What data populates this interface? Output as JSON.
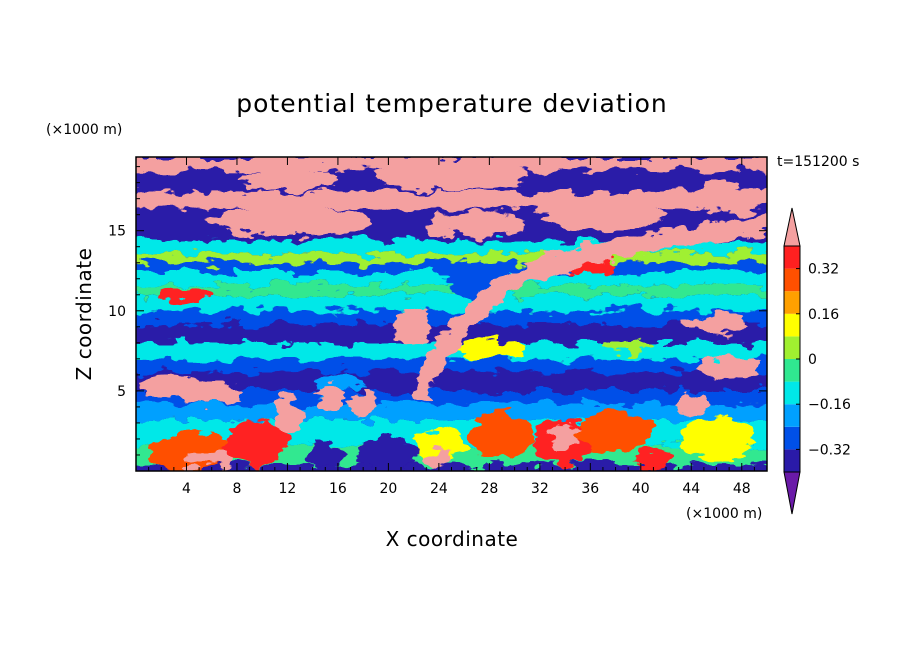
{
  "chart_data": {
    "type": "heatmap",
    "title": "potential temperature deviation",
    "xlabel": "X coordinate",
    "ylabel": "Z coordinate",
    "x_unit": "(×1000 m)",
    "y_unit": "(×1000 m)",
    "time_label": "t=151200 s",
    "xlim": [
      0,
      50
    ],
    "ylim": [
      0,
      19.6
    ],
    "x_ticks": [
      4,
      8,
      12,
      16,
      20,
      24,
      28,
      32,
      36,
      40,
      44,
      48
    ],
    "y_ticks": [
      5,
      10,
      15
    ],
    "colorbar": {
      "levels": [
        -0.4,
        -0.32,
        -0.24,
        -0.16,
        -0.08,
        0,
        0.08,
        0.16,
        0.24,
        0.32,
        0.4
      ],
      "tick_labels": [
        "0.32",
        "0.16",
        "0",
        "−0.16",
        "−0.32"
      ],
      "tick_values": [
        0.32,
        0.16,
        0,
        -0.16,
        -0.32
      ],
      "colors": [
        "#6a1aa8",
        "#2a1aa8",
        "#0050e8",
        "#00a0ff",
        "#00e8e8",
        "#30e890",
        "#a0f030",
        "#ffff00",
        "#ffa000",
        "#ff5000",
        "#ff2020",
        "#f4a0a0"
      ],
      "extend": "both"
    },
    "bands": [
      {
        "z": [
          0,
          0.4
        ],
        "value": -0.4
      },
      {
        "z": [
          0.4,
          1.6
        ],
        "value": -0.08
      },
      {
        "z": [
          1.6,
          3.2
        ],
        "value": -0.16
      },
      {
        "z": [
          3.2,
          4.2
        ],
        "value": -0.24
      },
      {
        "z": [
          4.2,
          5.0
        ],
        "value": -0.32
      },
      {
        "z": [
          5.0,
          6.2
        ],
        "value": -0.4
      },
      {
        "z": [
          6.2,
          7.0
        ],
        "value": -0.32
      },
      {
        "z": [
          7.0,
          8.0
        ],
        "value": -0.16
      },
      {
        "z": [
          8.0,
          9.2
        ],
        "value": -0.4
      },
      {
        "z": [
          9.2,
          10.0
        ],
        "value": -0.32
      },
      {
        "z": [
          10.0,
          11.0
        ],
        "value": -0.16
      },
      {
        "z": [
          11.0,
          11.6
        ],
        "value": -0.08
      },
      {
        "z": [
          11.6,
          12.4
        ],
        "value": -0.16
      },
      {
        "z": [
          12.4,
          13.0
        ],
        "value": -0.32
      },
      {
        "z": [
          13.0,
          13.6
        ],
        "value": 0
      },
      {
        "z": [
          13.6,
          14.4
        ],
        "value": -0.16
      },
      {
        "z": [
          14.4,
          16.4
        ],
        "value": -0.4
      },
      {
        "z": [
          16.4,
          17.4
        ],
        "value": 0.4
      },
      {
        "z": [
          17.4,
          18.8
        ],
        "value": -0.4
      },
      {
        "z": [
          18.8,
          19.6
        ],
        "value": 0.4
      }
    ],
    "blobs": [
      {
        "x": 4.5,
        "z": 1.2,
        "rx": 3.5,
        "rz": 1.2,
        "value": 0.24
      },
      {
        "x": 6,
        "z": 0.8,
        "rx": 2.0,
        "rz": 0.6,
        "value": 0.4
      },
      {
        "x": 9.5,
        "z": 1.8,
        "rx": 2.5,
        "rz": 1.4,
        "value": 0.32
      },
      {
        "x": 12,
        "z": 3.5,
        "rx": 1.0,
        "rz": 1.2,
        "value": 0.4
      },
      {
        "x": 15,
        "z": 1.0,
        "rx": 1.5,
        "rz": 0.7,
        "value": -0.4
      },
      {
        "x": 20,
        "z": 1.0,
        "rx": 2.5,
        "rz": 1.0,
        "value": -0.4
      },
      {
        "x": 24,
        "z": 1.6,
        "rx": 2.0,
        "rz": 1.0,
        "value": 0.08
      },
      {
        "x": 24,
        "z": 0.8,
        "rx": 1.0,
        "rz": 0.5,
        "value": 0.4
      },
      {
        "x": 29,
        "z": 2.2,
        "rx": 2.5,
        "rz": 1.5,
        "value": 0.24
      },
      {
        "x": 34,
        "z": 1.8,
        "rx": 2.5,
        "rz": 1.4,
        "value": 0.32
      },
      {
        "x": 34,
        "z": 2.2,
        "rx": 1.2,
        "rz": 0.8,
        "value": 0.4
      },
      {
        "x": 38,
        "z": 2.5,
        "rx": 3.0,
        "rz": 1.3,
        "value": 0.24
      },
      {
        "x": 41,
        "z": 0.8,
        "rx": 1.5,
        "rz": 0.6,
        "value": 0.32
      },
      {
        "x": 46,
        "z": 2.0,
        "rx": 3.0,
        "rz": 1.3,
        "value": 0.08
      },
      {
        "x": 28,
        "z": 7.6,
        "rx": 3.0,
        "rz": 0.6,
        "value": 0.08
      },
      {
        "x": 39,
        "z": 7.8,
        "rx": 2.0,
        "rz": 0.5,
        "value": 0
      },
      {
        "x": 16,
        "z": 5.5,
        "rx": 2.0,
        "rz": 0.6,
        "value": -0.24
      },
      {
        "x": 27,
        "z": 12.0,
        "rx": 2.5,
        "rz": 1.2,
        "value": -0.32
      },
      {
        "x": 2.5,
        "z": 5.3,
        "rx": 2.5,
        "rz": 0.7,
        "value": 0.4
      },
      {
        "x": 6,
        "z": 4.8,
        "rx": 2.5,
        "rz": 0.6,
        "value": 0.4
      },
      {
        "x": 15.5,
        "z": 4.6,
        "rx": 1.2,
        "rz": 0.9,
        "value": 0.4
      },
      {
        "x": 18,
        "z": 4.2,
        "rx": 1.0,
        "rz": 0.8,
        "value": 0.4
      },
      {
        "x": 22,
        "z": 9.0,
        "rx": 1.6,
        "rz": 1.2,
        "value": 0.4
      },
      {
        "x": 46,
        "z": 9.2,
        "rx": 2.5,
        "rz": 0.6,
        "value": 0.4
      },
      {
        "x": 47,
        "z": 6.5,
        "rx": 2.5,
        "rz": 0.7,
        "value": 0.4
      },
      {
        "x": 44,
        "z": 4.2,
        "rx": 1.2,
        "rz": 0.6,
        "value": 0.4
      },
      {
        "x": 12,
        "z": 15.6,
        "rx": 6.5,
        "rz": 0.9,
        "value": 0.4
      },
      {
        "x": 27,
        "z": 15.4,
        "rx": 4.0,
        "rz": 0.8,
        "value": 0.4
      },
      {
        "x": 37,
        "z": 16.0,
        "rx": 5.0,
        "rz": 0.9,
        "value": 0.4
      },
      {
        "x": 47,
        "z": 17.0,
        "rx": 3.0,
        "rz": 0.9,
        "value": 0.4
      },
      {
        "x": 25,
        "z": 18.4,
        "rx": 6.0,
        "rz": 0.9,
        "value": 0.4
      },
      {
        "x": 12,
        "z": 18.2,
        "rx": 4.0,
        "rz": 0.7,
        "value": 0.4
      },
      {
        "x": 36,
        "z": 12.8,
        "rx": 2.0,
        "rz": 0.6,
        "value": 0.32
      },
      {
        "x": 4,
        "z": 11.0,
        "rx": 2.0,
        "rz": 0.4,
        "value": 0.32
      }
    ],
    "plume": {
      "points": [
        [
          22.5,
          5.0
        ],
        [
          25,
          8.5
        ],
        [
          29,
          11.5
        ],
        [
          33,
          13.0
        ],
        [
          38,
          13.8
        ],
        [
          42,
          14.4
        ],
        [
          46,
          15.0
        ],
        [
          49.5,
          15.4
        ]
      ],
      "width": 1.2,
      "value": 0.4
    }
  }
}
